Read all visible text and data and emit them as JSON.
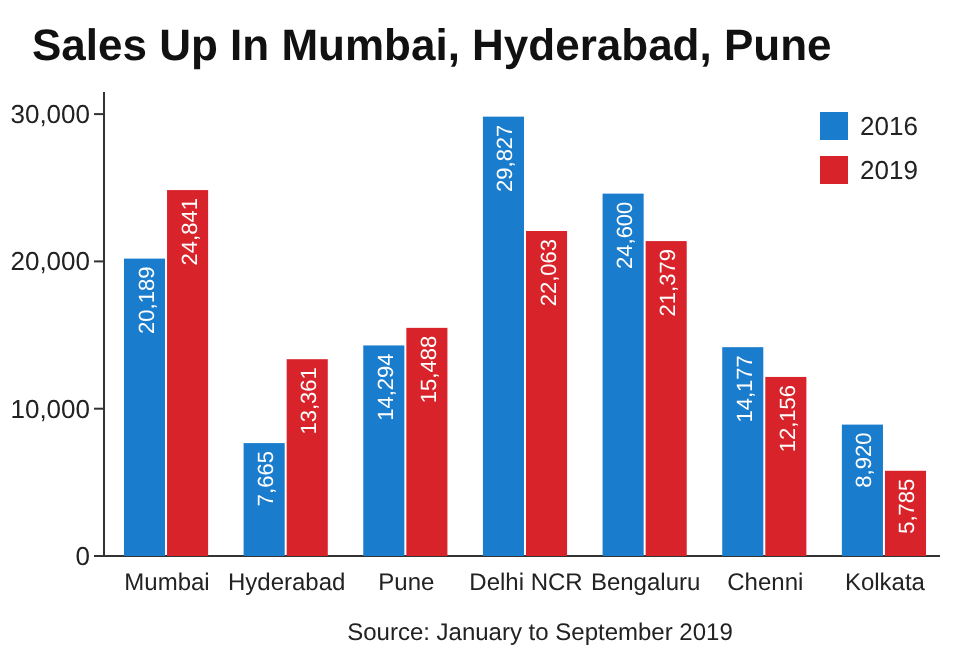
{
  "chart_data": {
    "type": "bar",
    "title": "Sales Up In Mumbai, Hyderabad, Pune",
    "categories": [
      "Mumbai",
      "Hyderabad",
      "Pune",
      "Delhi NCR",
      "Bengaluru",
      "Chenni",
      "Kolkata"
    ],
    "series": [
      {
        "name": "2016",
        "color": "#1a7ccc",
        "values": [
          20189,
          7665,
          14294,
          29827,
          24600,
          14177,
          8920
        ],
        "value_labels": [
          "20,189",
          "7,665",
          "14,294",
          "29,827",
          "24,600",
          "14,177",
          "8,920"
        ]
      },
      {
        "name": "2019",
        "color": "#d8232a",
        "values": [
          24841,
          13361,
          15488,
          22063,
          21379,
          12156,
          5785
        ],
        "value_labels": [
          "24,841",
          "13,361",
          "15,488",
          "22,063",
          "21,379",
          "12,156",
          "5,785"
        ]
      }
    ],
    "ylim": [
      0,
      31500
    ],
    "yticks": [
      0,
      {
        "value": 10000,
        "label": "10,000"
      },
      {
        "value": 20000,
        "label": "20,000"
      },
      {
        "value": 30000,
        "label": "30,000"
      }
    ],
    "legend": "top right",
    "annotations": [
      "Source: January to September 2019"
    ]
  }
}
